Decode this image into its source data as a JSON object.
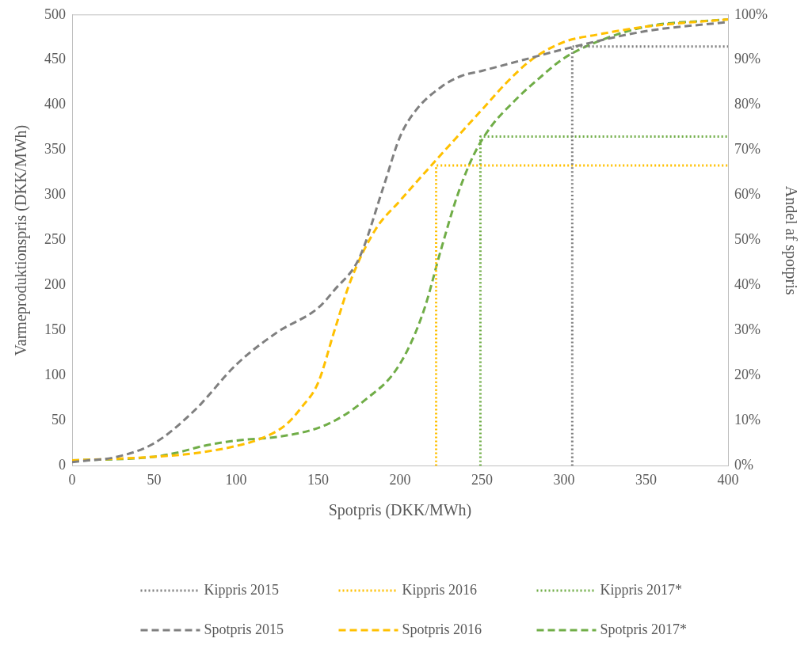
{
  "chart_data": {
    "type": "line",
    "xlabel": "Spotpris (DKK/MWh)",
    "ylabel": "Varmeproduktionspris (DKK/MWh)",
    "y2label": "Andel af spotpris",
    "xlim": [
      0,
      400
    ],
    "xticks": [
      0,
      50,
      100,
      150,
      200,
      250,
      300,
      350,
      400
    ],
    "ylim": [
      0,
      500
    ],
    "yticks": [
      0,
      50,
      100,
      150,
      200,
      250,
      300,
      350,
      400,
      450,
      500
    ],
    "y2lim": [
      0,
      100
    ],
    "y2ticks": [
      {
        "value": 0,
        "label": "0%"
      },
      {
        "value": 10,
        "label": "10%"
      },
      {
        "value": 20,
        "label": "20%"
      },
      {
        "value": 30,
        "label": "30%"
      },
      {
        "value": 40,
        "label": "40%"
      },
      {
        "value": 50,
        "label": "50%"
      },
      {
        "value": 60,
        "label": "60%"
      },
      {
        "value": 70,
        "label": "70%"
      },
      {
        "value": 80,
        "label": "80%"
      },
      {
        "value": 90,
        "label": "90%"
      },
      {
        "value": 100,
        "label": "100%"
      }
    ],
    "grid": false,
    "legend": "bottom",
    "marker": "none",
    "series": [
      {
        "name": "Kippris 2015",
        "color": "#7f7f7f",
        "line_style": "dotted",
        "x": [
          305,
          305,
          400
        ],
        "values": [
          0,
          465,
          465
        ]
      },
      {
        "name": "Kippris 2016",
        "color": "#ffc000",
        "line_style": "dotted",
        "x": [
          222,
          222,
          400
        ],
        "values": [
          0,
          333,
          333
        ]
      },
      {
        "name": "Kippris 2017*",
        "color": "#70ad47",
        "line_style": "dotted",
        "x": [
          249,
          249,
          400
        ],
        "values": [
          0,
          365,
          365
        ]
      },
      {
        "name": "Spotpris 2015",
        "color": "#7f7f7f",
        "line_style": "dashed",
        "x": [
          0,
          10,
          25,
          50,
          75,
          100,
          125,
          150,
          160,
          175,
          190,
          200,
          210,
          225,
          237,
          250,
          275,
          300,
          350,
          400
        ],
        "values": [
          4,
          6,
          9,
          25,
          62,
          112,
          148,
          175,
          195,
          230,
          310,
          365,
          395,
          420,
          432,
          438,
          450,
          462,
          482,
          492
        ]
      },
      {
        "name": "Spotpris 2016",
        "color": "#ffc000",
        "line_style": "dashed",
        "x": [
          0,
          50,
          75,
          100,
          115,
          130,
          140,
          150,
          160,
          170,
          185,
          200,
          220,
          250,
          265,
          280,
          300,
          320,
          350,
          400
        ],
        "values": [
          6,
          10,
          14,
          22,
          30,
          45,
          65,
          92,
          150,
          206,
          262,
          294,
          335,
          395,
          425,
          450,
          470,
          478,
          487,
          495
        ]
      },
      {
        "name": "Spotpris 2017*",
        "color": "#70ad47",
        "line_style": "dashed",
        "x": [
          0,
          50,
          65,
          80,
          100,
          125,
          150,
          165,
          180,
          195,
          205,
          215,
          225,
          235,
          245,
          255,
          270,
          285,
          300,
          320,
          350,
          400
        ],
        "values": [
          6,
          10,
          15,
          22,
          28,
          32,
          42,
          55,
          75,
          100,
          130,
          175,
          240,
          300,
          345,
          375,
          405,
          430,
          452,
          470,
          487,
          495
        ]
      }
    ]
  }
}
